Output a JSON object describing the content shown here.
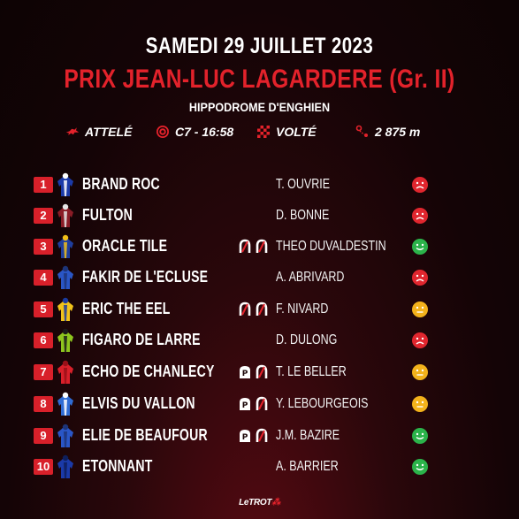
{
  "header": {
    "date": "SAMEDI 29 JUILLET 2023",
    "race_title": "PRIX JEAN-LUC LAGARDERE (Gr. II)",
    "venue": "HIPPODROME D'ENGHIEN"
  },
  "meta": {
    "discipline": "ATTELÉ",
    "race_code": "C7 - 16:58",
    "start_type": "VOLTÉ",
    "distance": "2 875 m",
    "icons": [
      "trotter-icon",
      "target-icon",
      "checkered-flag-icon",
      "route-icon"
    ]
  },
  "colors": {
    "accent_red": "#e3222b",
    "number_badge": "#d8202a",
    "mood_good": "#2bb34a",
    "mood_neutral": "#f3b21b",
    "mood_bad": "#e0262e"
  },
  "runners": [
    {
      "number": "1",
      "horse": "BRAND ROC",
      "driver": "T. OUVRIE",
      "shoes": [],
      "mood": "bad",
      "silk": [
        "#1b3aa8",
        "#ffffff"
      ]
    },
    {
      "number": "2",
      "horse": "FULTON",
      "driver": "D. BONNE",
      "shoes": [],
      "mood": "bad",
      "silk": [
        "#8a1c26",
        "#e6e6e6"
      ]
    },
    {
      "number": "3",
      "horse": "ORACLE TILE",
      "driver": "THEO DUVALDESTIN",
      "shoes": [
        "barefoot",
        "barefoot"
      ],
      "mood": "good",
      "silk": [
        "#1f3e9e",
        "#f2c018"
      ]
    },
    {
      "number": "4",
      "horse": "FAKIR DE L'ECLUSE",
      "driver": "A. ABRIVARD",
      "shoes": [],
      "mood": "bad",
      "silk": [
        "#2a56c6",
        "#1d3478"
      ]
    },
    {
      "number": "5",
      "horse": "ERIC THE EEL",
      "driver": "F. NIVARD",
      "shoes": [
        "barefoot",
        "barefoot"
      ],
      "mood": "neutral",
      "silk": [
        "#f0c21a",
        "#1a3a9e"
      ]
    },
    {
      "number": "6",
      "horse": "FIGARO DE LARRE",
      "driver": "D. DULONG",
      "shoes": [],
      "mood": "bad",
      "silk": [
        "#8ec51e",
        "#1a1a1a"
      ]
    },
    {
      "number": "7",
      "horse": "ECHO DE CHANLECY",
      "driver": "T. LE BELLER",
      "shoes": [
        "plate",
        "barefoot"
      ],
      "mood": "neutral",
      "silk": [
        "#d8202a",
        "#9a1018"
      ]
    },
    {
      "number": "8",
      "horse": "ELVIS DU VALLON",
      "driver": "Y. LEBOURGEOIS",
      "shoes": [
        "plate",
        "barefoot"
      ],
      "mood": "neutral",
      "silk": [
        "#2f6cd4",
        "#ffffff"
      ]
    },
    {
      "number": "9",
      "horse": "ELIE DE BEAUFOUR",
      "driver": "J.M. BAZIRE",
      "shoes": [
        "plate",
        "barefoot"
      ],
      "mood": "good",
      "silk": [
        "#2a56c6",
        "#1d3478"
      ]
    },
    {
      "number": "10",
      "horse": "ETONNANT",
      "driver": "A. BARRIER",
      "shoes": [],
      "mood": "good",
      "silk": [
        "#1b3aa8",
        "#0e1f5c"
      ]
    }
  ],
  "footer": {
    "logo_text": "LeTROT"
  }
}
